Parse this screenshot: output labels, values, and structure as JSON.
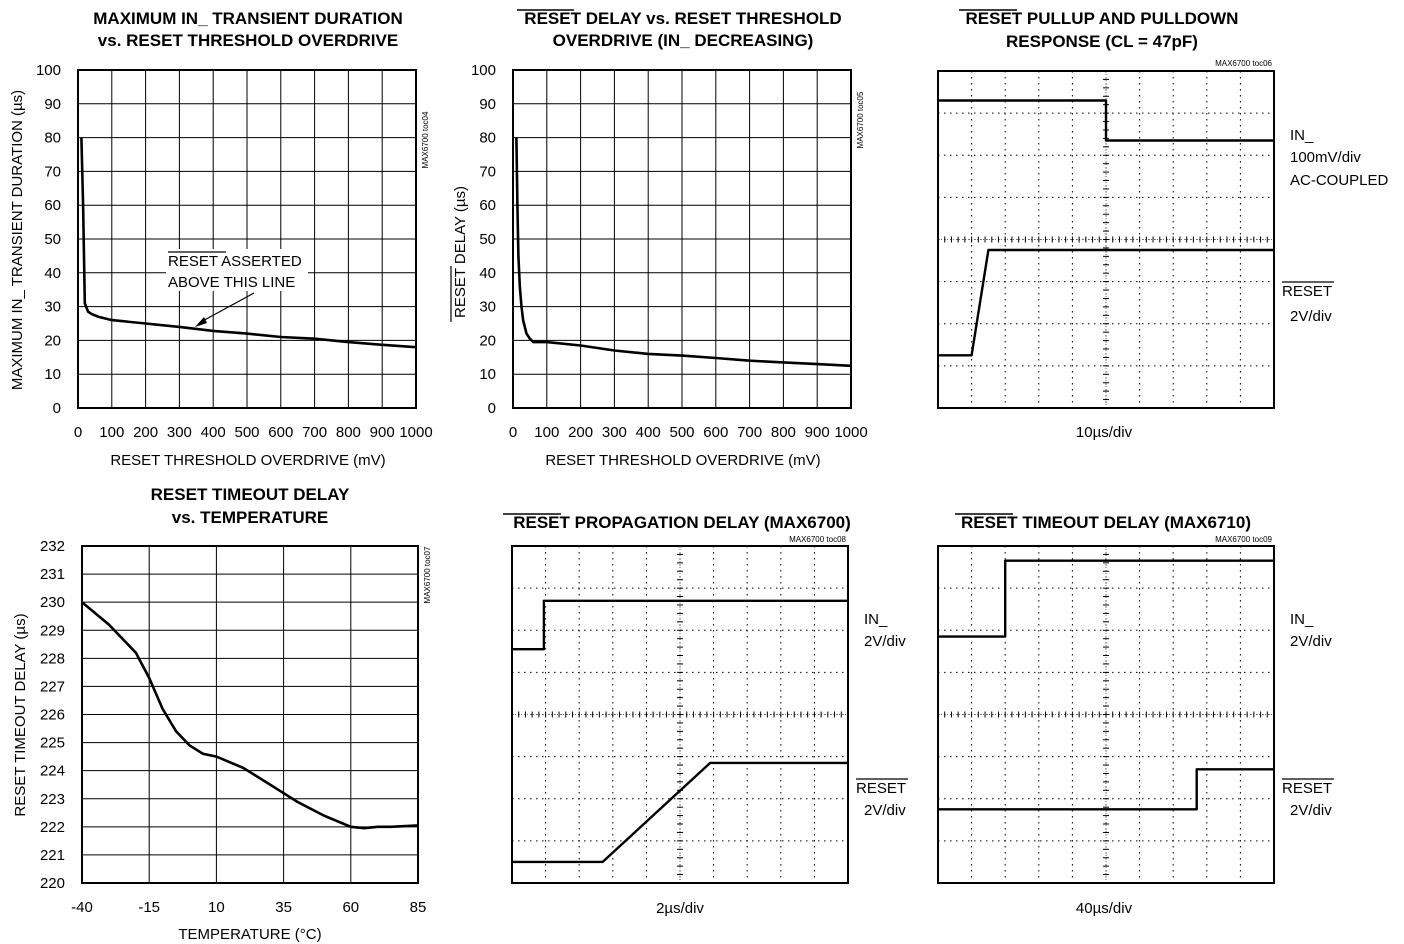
{
  "chart_data": [
    {
      "type": "line",
      "title_lines": [
        "MAXIMUM IN_ TRANSIENT DURATION",
        "vs. RESET THRESHOLD OVERDRIVE"
      ],
      "xlabel": "RESET THRESHOLD OVERDRIVE (mV)",
      "ylabel": "MAXIMUM IN_ TRANSIENT DURATION (µs)",
      "tag": "MAX6700 toc04",
      "xlim": [
        0,
        1000
      ],
      "ylim": [
        0,
        100
      ],
      "x_ticks": [
        "0",
        "100",
        "200",
        "300",
        "400",
        "500",
        "600",
        "700",
        "800",
        "900",
        "1000"
      ],
      "y_ticks": [
        "0",
        "10",
        "20",
        "30",
        "40",
        "50",
        "60",
        "70",
        "80",
        "90",
        "100"
      ],
      "grid": true,
      "annotation_lines": [
        "RESET ASSERTED",
        "ABOVE THIS LINE"
      ],
      "series": [
        {
          "x": [
            10,
            15,
            20,
            30,
            40,
            60,
            100,
            200,
            300,
            400,
            500,
            600,
            700,
            800,
            900,
            1000
          ],
          "y": [
            80,
            60,
            31,
            28.5,
            27.8,
            27,
            26,
            25,
            24,
            22.8,
            22,
            21,
            20.5,
            19.5,
            18.7,
            18
          ]
        }
      ]
    },
    {
      "type": "line",
      "title_lines": [
        "RESET DELAY vs. RESET THRESHOLD",
        "OVERDRIVE (IN_ DECREASING)"
      ],
      "xlabel": "RESET THRESHOLD OVERDRIVE (mV)",
      "ylabel": "RESET DELAY (µs)",
      "tag": "MAX6700 toc05",
      "xlim": [
        0,
        1000
      ],
      "ylim": [
        0,
        100
      ],
      "x_ticks": [
        "0",
        "100",
        "200",
        "300",
        "400",
        "500",
        "600",
        "700",
        "800",
        "900",
        "1000"
      ],
      "y_ticks": [
        "0",
        "10",
        "20",
        "30",
        "40",
        "50",
        "60",
        "70",
        "80",
        "90",
        "100"
      ],
      "grid": true,
      "series": [
        {
          "x": [
            10,
            13,
            16,
            20,
            25,
            30,
            40,
            50,
            60,
            100,
            200,
            300,
            400,
            500,
            600,
            700,
            800,
            900,
            1000
          ],
          "y": [
            80,
            60,
            45,
            36,
            30,
            26,
            22,
            20.5,
            19.5,
            19.5,
            18.5,
            17,
            16,
            15.5,
            14.8,
            14,
            13.5,
            13,
            12.5
          ]
        }
      ]
    },
    {
      "type": "line",
      "title_lines": [
        "RESET PULLUP AND PULLDOWN",
        "RESPONSE (CL = 47pF)"
      ],
      "tag": "MAX6700 toc06",
      "xlabel": "10µs/div",
      "trace_labels": [
        [
          "IN_",
          "100mV/div",
          "AC-COUPLED"
        ],
        [
          "RESET",
          "2V/div"
        ]
      ],
      "grid_divisions": [
        10,
        8
      ],
      "series": [
        {
          "name": "IN_",
          "x": [
            0,
            5,
            5,
            10
          ],
          "y": [
            7.3,
            7.3,
            6.35,
            6.35
          ]
        },
        {
          "name": "RESET",
          "x": [
            0,
            1,
            1.5,
            10
          ],
          "y": [
            1.25,
            1.25,
            3.75,
            3.75
          ]
        }
      ]
    },
    {
      "type": "line",
      "title_lines": [
        "RESET TIMEOUT DELAY",
        "vs. TEMPERATURE"
      ],
      "xlabel": "TEMPERATURE (°C)",
      "ylabel": "RESET TIMEOUT DELAY (µs)",
      "tag": "MAX6700 toc07",
      "xlim": [
        -40,
        85
      ],
      "ylim": [
        220,
        232
      ],
      "x_ticks": [
        "-40",
        "-15",
        "10",
        "35",
        "60",
        "85"
      ],
      "y_ticks": [
        "220",
        "221",
        "222",
        "223",
        "224",
        "225",
        "226",
        "227",
        "228",
        "229",
        "230",
        "231",
        "232"
      ],
      "grid": true,
      "series": [
        {
          "x": [
            -40,
            -30,
            -20,
            -15,
            -10,
            -5,
            0,
            5,
            10,
            20,
            30,
            40,
            50,
            60,
            65,
            70,
            75,
            85
          ],
          "y": [
            230,
            229.2,
            228.2,
            227.3,
            226.2,
            225.4,
            224.9,
            224.6,
            224.5,
            224.1,
            223.5,
            222.9,
            222.4,
            222.0,
            221.95,
            222,
            222.0,
            222.05
          ]
        }
      ]
    },
    {
      "type": "line",
      "title_lines": [
        "RESET PROPAGATION DELAY (MAX6700)"
      ],
      "tag": "MAX6700 toc08",
      "xlabel": "2µs/div",
      "trace_labels": [
        [
          "IN_",
          "2V/div"
        ],
        [
          "RESET",
          "2V/div"
        ]
      ],
      "grid_divisions": [
        10,
        8
      ],
      "series": [
        {
          "name": "IN_",
          "x": [
            0,
            0.95,
            0.95,
            10
          ],
          "y": [
            5.55,
            5.55,
            6.7,
            6.7
          ]
        },
        {
          "name": "RESET",
          "x": [
            0,
            2.7,
            5.9,
            10
          ],
          "y": [
            0.5,
            0.5,
            2.85,
            2.85
          ]
        }
      ]
    },
    {
      "type": "line",
      "title_lines": [
        "RESET TIMEOUT DELAY (MAX6710)"
      ],
      "tag": "MAX6700 toc09",
      "xlabel": "40µs/div",
      "trace_labels": [
        [
          "IN_",
          "2V/div"
        ],
        [
          "RESET",
          "2V/div"
        ]
      ],
      "grid_divisions": [
        10,
        8
      ],
      "series": [
        {
          "name": "IN_",
          "x": [
            0,
            2,
            2,
            10
          ],
          "y": [
            5.85,
            5.85,
            7.65,
            7.65
          ]
        },
        {
          "name": "RESET",
          "x": [
            0,
            7.7,
            7.7,
            10
          ],
          "y": [
            1.75,
            1.75,
            2.7,
            2.7
          ]
        }
      ]
    }
  ]
}
